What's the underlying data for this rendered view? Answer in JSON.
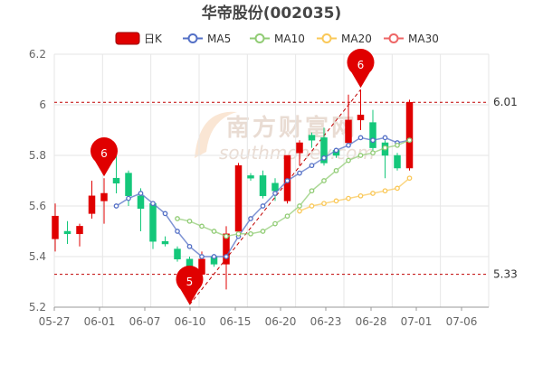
{
  "chart_data": {
    "type": "candlestick",
    "title": "华帝股份(002035)",
    "legend": [
      {
        "name": "日K",
        "color": "#e00000",
        "marker": "candle"
      },
      {
        "name": "MA5",
        "color": "#5470c6",
        "marker": "circle"
      },
      {
        "name": "MA10",
        "color": "#91cc75",
        "marker": "circle"
      },
      {
        "name": "MA20",
        "color": "#fac858",
        "marker": "circle"
      },
      {
        "name": "MA30",
        "color": "#ee6666",
        "marker": "circle"
      }
    ],
    "legend_position": "top-center",
    "colors": {
      "up": "#e00000",
      "down": "#14c77a",
      "grid": "#e6e6e6",
      "axis_text": "#666666",
      "ref_line": "#c00000"
    },
    "ylim": [
      5.2,
      6.2
    ],
    "yticks": [
      "5.2",
      "5.4",
      "5.6",
      "5.8",
      "6",
      "6.2"
    ],
    "xtick_labels": [
      "05-27",
      "06-01",
      "06-07",
      "06-10",
      "06-15",
      "06-20",
      "06-23",
      "06-28",
      "07-01",
      "07-06"
    ],
    "xtick_index": [
      0,
      4,
      8,
      12,
      16,
      20,
      24,
      28,
      32,
      36
    ],
    "candles": [
      {
        "open": 5.47,
        "close": 5.56,
        "high": 5.61,
        "low": 5.42
      },
      {
        "open": 5.5,
        "close": 5.49,
        "high": 5.54,
        "low": 5.45
      },
      {
        "open": 5.49,
        "close": 5.52,
        "high": 5.53,
        "low": 5.44
      },
      {
        "open": 5.57,
        "close": 5.64,
        "high": 5.7,
        "low": 5.55
      },
      {
        "open": 5.62,
        "close": 5.65,
        "high": 5.71,
        "low": 5.53
      },
      {
        "open": 5.71,
        "close": 5.69,
        "high": 5.8,
        "low": 5.65
      },
      {
        "open": 5.73,
        "close": 5.64,
        "high": 5.74,
        "low": 5.6
      },
      {
        "open": 5.64,
        "close": 5.59,
        "high": 5.67,
        "low": 5.5
      },
      {
        "open": 5.61,
        "close": 5.46,
        "high": 5.61,
        "low": 5.43
      },
      {
        "open": 5.46,
        "close": 5.45,
        "high": 5.48,
        "low": 5.44
      },
      {
        "open": 5.43,
        "close": 5.39,
        "high": 5.44,
        "low": 5.38
      },
      {
        "open": 5.39,
        "close": 5.33,
        "high": 5.4,
        "low": 5.21
      },
      {
        "open": 5.33,
        "close": 5.39,
        "high": 5.42,
        "low": 5.32
      },
      {
        "open": 5.4,
        "close": 5.37,
        "high": 5.41,
        "low": 5.36
      },
      {
        "open": 5.37,
        "close": 5.49,
        "high": 5.52,
        "low": 5.27
      },
      {
        "open": 5.5,
        "close": 5.76,
        "high": 5.77,
        "low": 5.48
      },
      {
        "open": 5.72,
        "close": 5.71,
        "high": 5.73,
        "low": 5.7
      },
      {
        "open": 5.72,
        "close": 5.64,
        "high": 5.74,
        "low": 5.63
      },
      {
        "open": 5.69,
        "close": 5.66,
        "high": 5.71,
        "low": 5.62
      },
      {
        "open": 5.62,
        "close": 5.8,
        "high": 5.8,
        "low": 5.61
      },
      {
        "open": 5.81,
        "close": 5.85,
        "high": 5.86,
        "low": 5.76
      },
      {
        "open": 5.88,
        "close": 5.86,
        "high": 5.89,
        "low": 5.83
      },
      {
        "open": 5.87,
        "close": 5.77,
        "high": 5.91,
        "low": 5.76
      },
      {
        "open": 5.82,
        "close": 5.8,
        "high": 5.83,
        "low": 5.79
      },
      {
        "open": 5.85,
        "close": 5.94,
        "high": 6.04,
        "low": 5.84
      },
      {
        "open": 5.94,
        "close": 5.96,
        "high": 6.06,
        "low": 5.9
      },
      {
        "open": 5.93,
        "close": 5.83,
        "high": 5.98,
        "low": 5.81
      },
      {
        "open": 5.85,
        "close": 5.8,
        "high": 5.86,
        "low": 5.71
      },
      {
        "open": 5.8,
        "close": 5.75,
        "high": 5.81,
        "low": 5.74
      },
      {
        "open": 5.75,
        "close": 6.01,
        "high": 6.02,
        "low": 5.74
      }
    ],
    "series": [
      {
        "name": "MA5",
        "color": "#5470c6",
        "start": 5,
        "values": [
          5.6,
          5.63,
          5.65,
          5.61,
          5.57,
          5.5,
          5.44,
          5.4,
          5.4,
          5.4,
          5.48,
          5.55,
          5.6,
          5.65,
          5.7,
          5.73,
          5.76,
          5.79,
          5.82,
          5.84,
          5.87,
          5.86,
          5.87,
          5.85,
          5.86
        ]
      },
      {
        "name": "MA10",
        "color": "#91cc75",
        "start": 10,
        "values": [
          5.55,
          5.54,
          5.52,
          5.5,
          5.48,
          5.49,
          5.49,
          5.5,
          5.53,
          5.56,
          5.6,
          5.66,
          5.7,
          5.74,
          5.78,
          5.8,
          5.81,
          5.83,
          5.84,
          5.86
        ]
      },
      {
        "name": "MA20",
        "color": "#fac858",
        "start": 20,
        "values": [
          5.58,
          5.6,
          5.61,
          5.62,
          5.63,
          5.64,
          5.65,
          5.66,
          5.67,
          5.71
        ]
      },
      {
        "name": "MA30",
        "color": "#ee6666",
        "start": 29,
        "values": []
      }
    ],
    "reference_lines": [
      {
        "label": "6.01",
        "value": 6.01
      },
      {
        "label": "5.33",
        "value": 5.33
      }
    ],
    "markers": [
      {
        "label": "6",
        "index": 4,
        "value": 5.71,
        "type": "max"
      },
      {
        "label": "6",
        "index": 25,
        "value": 6.06,
        "type": "max"
      },
      {
        "label": "5",
        "index": 11,
        "value": 5.21,
        "type": "min"
      }
    ],
    "trend_lines": [
      {
        "from_index": 11,
        "from_value": 5.21,
        "to_index": 25,
        "to_value": 6.06
      }
    ],
    "watermark": {
      "text": "南方财富网",
      "subtext": "southmoney.com"
    },
    "grid": true
  }
}
